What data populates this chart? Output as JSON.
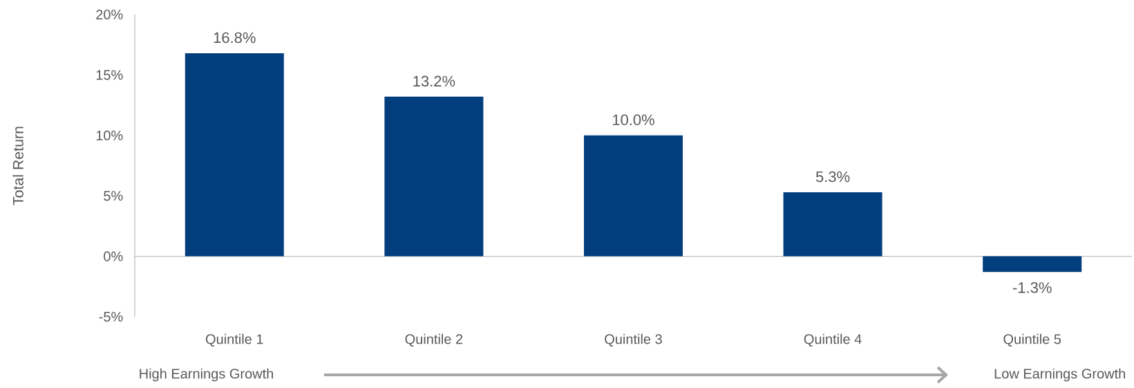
{
  "chart_data": {
    "type": "bar",
    "ylabel": "Total Return",
    "categories": [
      "Quintile 1",
      "Quintile 2",
      "Quintile 3",
      "Quintile 4",
      "Quintile 5"
    ],
    "values": [
      16.8,
      13.2,
      10.0,
      5.3,
      -1.3
    ],
    "value_labels": [
      "16.8%",
      "13.2%",
      "10.0%",
      "5.3%",
      "-1.3%"
    ],
    "color": "#023e7d",
    "ylim": [
      -5,
      20
    ],
    "yticks": [
      {
        "value": -5,
        "label": "-5%"
      },
      {
        "value": 0,
        "label": "0%"
      },
      {
        "value": 5,
        "label": "5%"
      },
      {
        "value": 10,
        "label": "10%"
      },
      {
        "value": 15,
        "label": "15%"
      },
      {
        "value": 20,
        "label": "20%"
      }
    ],
    "annotations": [
      "High Earnings Growth",
      "Low Earnings Growth"
    ]
  }
}
